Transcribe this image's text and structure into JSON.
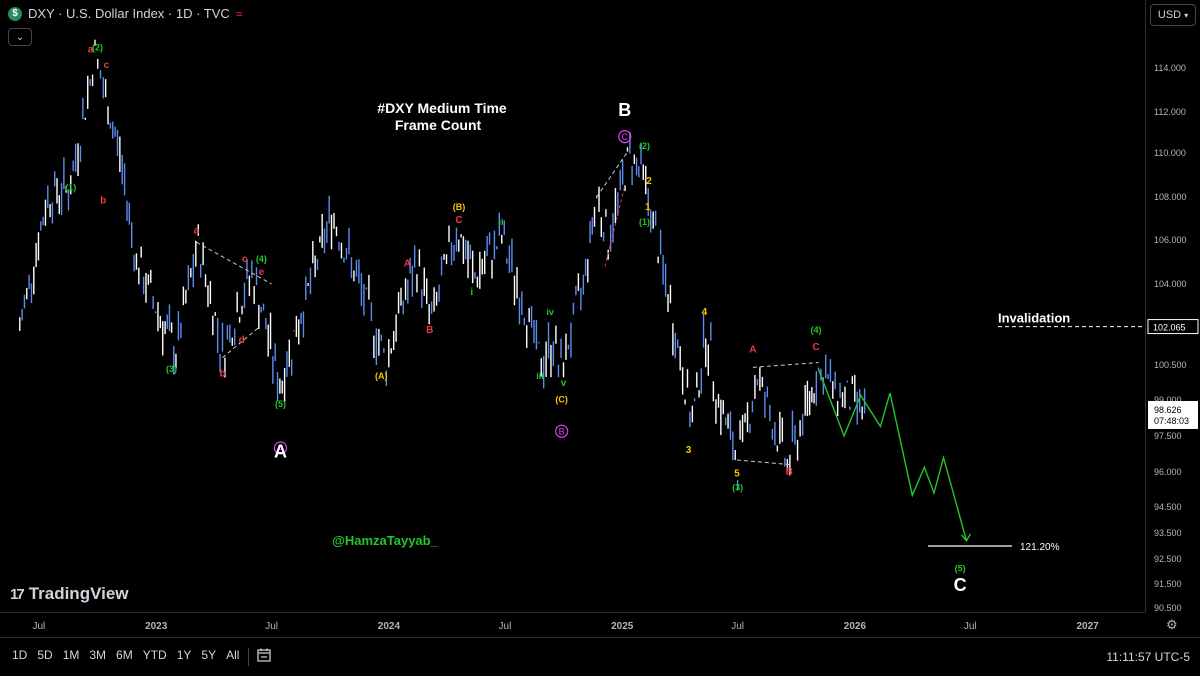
{
  "header": {
    "symbol_icon": "$",
    "title": "DXY · U.S. Dollar Index · 1D · TVC",
    "wave_icon": "≈",
    "collapse_icon": "chevron-down-icon",
    "currency": "USD"
  },
  "colors": {
    "background": "#000000",
    "candle": "#5b8def",
    "candle_alt": "#ffffff",
    "green": "#22c52e",
    "red": "#f23645",
    "yellow": "#f7c600",
    "magenta": "#e040fb",
    "white": "#ffffff"
  },
  "annotations": {
    "title_line1": "#DXY Medium Time",
    "title_line2": "Frame Count",
    "handle": "@HamzaTayyab_",
    "invalidation": "Invalidation",
    "target_pct": "121.20%",
    "big_A": "A",
    "big_B": "B",
    "big_C": "C"
  },
  "chart_data": {
    "type": "line",
    "title": "DXY · U.S. Dollar Index · 1D · TVC",
    "ylim": [
      90.5,
      116.0
    ],
    "y_ticks": [
      "114.000",
      "112.000",
      "110.000",
      "108.000",
      "106.000",
      "104.000",
      "102.000",
      "100.500",
      "99.000",
      "97.500",
      "96.000",
      "94.500",
      "93.500",
      "92.500",
      "91.500",
      "90.500"
    ],
    "x_ticks": [
      "Jul",
      "2023",
      "Jul",
      "2024",
      "Jul",
      "2025",
      "Jul",
      "2026",
      "Jul",
      "2027"
    ],
    "last_price": "98.626",
    "countdown": "07:48:03",
    "invalidation_price": "102.065",
    "series": [
      {
        "values": [
          {
            "date": "2022-06-01",
            "close": 102.0
          },
          {
            "date": "2022-07-15",
            "close": 108.0
          },
          {
            "date": "2022-08-20",
            "close": 108.5
          },
          {
            "date": "2022-09-27",
            "close": 114.7
          },
          {
            "date": "2022-10-10",
            "close": 113.0
          },
          {
            "date": "2022-11-05",
            "close": 110.0
          },
          {
            "date": "2022-12-01",
            "close": 105.0
          },
          {
            "date": "2023-01-15",
            "close": 102.0
          },
          {
            "date": "2023-02-01",
            "close": 101.0
          },
          {
            "date": "2023-03-08",
            "close": 105.8
          },
          {
            "date": "2023-04-15",
            "close": 101.0
          },
          {
            "date": "2023-05-31",
            "close": 104.5
          },
          {
            "date": "2023-07-14",
            "close": 99.6
          },
          {
            "date": "2023-08-20",
            "close": 103.0
          },
          {
            "date": "2023-10-03",
            "close": 107.2
          },
          {
            "date": "2023-11-15",
            "close": 104.0
          },
          {
            "date": "2023-12-28",
            "close": 100.6
          },
          {
            "date": "2024-01-20",
            "close": 103.0
          },
          {
            "date": "2024-02-14",
            "close": 104.9
          },
          {
            "date": "2024-03-08",
            "close": 102.4
          },
          {
            "date": "2024-04-16",
            "close": 106.5
          },
          {
            "date": "2024-05-15",
            "close": 104.3
          },
          {
            "date": "2024-06-26",
            "close": 106.1
          },
          {
            "date": "2024-07-20",
            "close": 104.0
          },
          {
            "date": "2024-08-27",
            "close": 100.5
          },
          {
            "date": "2024-09-15",
            "close": 101.5
          },
          {
            "date": "2024-09-27",
            "close": 100.2
          },
          {
            "date": "2024-11-01",
            "close": 104.0
          },
          {
            "date": "2024-11-22",
            "close": 108.1
          },
          {
            "date": "2024-12-10",
            "close": 106.0
          },
          {
            "date": "2025-01-13",
            "close": 110.0
          },
          {
            "date": "2025-02-03",
            "close": 109.0
          },
          {
            "date": "2025-03-10",
            "close": 104.0
          },
          {
            "date": "2025-04-21",
            "close": 98.0
          },
          {
            "date": "2025-05-12",
            "close": 101.9
          },
          {
            "date": "2025-06-01",
            "close": 99.0
          },
          {
            "date": "2025-07-01",
            "close": 96.4
          },
          {
            "date": "2025-08-01",
            "close": 100.0
          },
          {
            "date": "2025-09-17",
            "close": 96.3
          },
          {
            "date": "2025-10-15",
            "close": 98.5
          },
          {
            "date": "2025-11-05",
            "close": 100.3
          },
          {
            "date": "2025-12-01",
            "close": 99.4
          },
          {
            "date": "2026-01-20",
            "close": 98.6
          }
        ]
      },
      {
        "values": [
          {
            "date": "2025-11-05",
            "close": 100.3
          },
          {
            "date": "2025-12-15",
            "close": 97.5
          },
          {
            "date": "2026-01-10",
            "close": 99.2
          },
          {
            "date": "2026-02-10",
            "close": 97.9
          },
          {
            "date": "2026-02-25",
            "close": 99.3
          },
          {
            "date": "2026-04-01",
            "close": 95.0
          },
          {
            "date": "2026-04-20",
            "close": 96.2
          },
          {
            "date": "2026-05-05",
            "close": 95.1
          },
          {
            "date": "2026-05-20",
            "close": 96.6
          },
          {
            "date": "2026-06-25",
            "close": 93.2
          }
        ]
      }
    ],
    "labels": [
      {
        "text": "(1)",
        "date": "2022-08-20",
        "price": 108.3,
        "color": "green"
      },
      {
        "text": "a",
        "date": "2022-09-20",
        "price": 114.7,
        "color": "red"
      },
      {
        "text": "(2)",
        "date": "2022-10-01",
        "price": 114.8,
        "color": "green"
      },
      {
        "text": "c",
        "date": "2022-10-15",
        "price": 114.0,
        "color": "red"
      },
      {
        "text": "b",
        "date": "2022-10-10",
        "price": 107.7,
        "color": "red"
      },
      {
        "text": "a",
        "date": "2023-03-05",
        "price": 106.3,
        "color": "red"
      },
      {
        "text": "b",
        "date": "2023-04-15",
        "price": 100.0,
        "color": "red"
      },
      {
        "text": "c",
        "date": "2023-05-20",
        "price": 105.0,
        "color": "red"
      },
      {
        "text": "(4)",
        "date": "2023-06-15",
        "price": 105.0,
        "color": "green"
      },
      {
        "text": "e",
        "date": "2023-06-15",
        "price": 104.4,
        "color": "red"
      },
      {
        "text": "d",
        "date": "2023-05-15",
        "price": 101.4,
        "color": "red"
      },
      {
        "text": "(3)",
        "date": "2023-01-25",
        "price": 100.2,
        "color": "green"
      },
      {
        "text": "(5)",
        "date": "2023-07-15",
        "price": 98.7,
        "color": "green"
      },
      {
        "text": "A",
        "date": "2023-07-15",
        "price": 97.0,
        "color": "circle-magenta"
      },
      {
        "text": "(A)",
        "date": "2023-12-20",
        "price": 99.9,
        "color": "yellow"
      },
      {
        "text": "A",
        "date": "2024-01-30",
        "price": 104.8,
        "color": "red"
      },
      {
        "text": "B",
        "date": "2024-03-05",
        "price": 101.8,
        "color": "red"
      },
      {
        "text": "(B)",
        "date": "2024-04-20",
        "price": 107.4,
        "color": "yellow"
      },
      {
        "text": "C",
        "date": "2024-04-20",
        "price": 106.8,
        "color": "red"
      },
      {
        "text": "ii",
        "date": "2024-06-25",
        "price": 106.7,
        "color": "green"
      },
      {
        "text": "i",
        "date": "2024-05-10",
        "price": 103.5,
        "color": "green"
      },
      {
        "text": "iv",
        "date": "2024-09-10",
        "price": 102.6,
        "color": "green"
      },
      {
        "text": "iii",
        "date": "2024-08-25",
        "price": 99.9,
        "color": "green"
      },
      {
        "text": "v",
        "date": "2024-10-01",
        "price": 99.6,
        "color": "green"
      },
      {
        "text": "(C)",
        "date": "2024-09-28",
        "price": 98.9,
        "color": "yellow"
      },
      {
        "text": "B",
        "date": "2024-09-28",
        "price": 97.7,
        "color": "circle-magenta"
      },
      {
        "text": "C",
        "date": "2025-01-05",
        "price": 110.8,
        "color": "circle-magenta"
      },
      {
        "text": "(2)",
        "date": "2025-02-05",
        "price": 110.2,
        "color": "green"
      },
      {
        "text": "2",
        "date": "2025-02-12",
        "price": 108.6,
        "color": "yellow"
      },
      {
        "text": "1",
        "date": "2025-02-10",
        "price": 107.4,
        "color": "yellow"
      },
      {
        "text": "(1)",
        "date": "2025-02-05",
        "price": 106.7,
        "color": "green"
      },
      {
        "text": "4",
        "date": "2025-05-10",
        "price": 102.6,
        "color": "yellow"
      },
      {
        "text": "3",
        "date": "2025-04-15",
        "price": 96.8,
        "color": "yellow"
      },
      {
        "text": "5",
        "date": "2025-06-30",
        "price": 95.8,
        "color": "yellow"
      },
      {
        "text": "(3)",
        "date": "2025-07-01",
        "price": 95.2,
        "color": "green"
      },
      {
        "text": "A",
        "date": "2025-07-25",
        "price": 101.0,
        "color": "red"
      },
      {
        "text": "B",
        "date": "2025-09-20",
        "price": 95.9,
        "color": "red"
      },
      {
        "text": "C",
        "date": "2025-11-01",
        "price": 101.1,
        "color": "red"
      },
      {
        "text": "(4)",
        "date": "2025-11-01",
        "price": 101.8,
        "color": "green"
      },
      {
        "text": "(5)",
        "date": "2026-06-15",
        "price": 92.0,
        "color": "green"
      }
    ]
  },
  "time_axis": {
    "settings_icon": "gear-icon"
  },
  "footer": {
    "logo_text": "TradingView",
    "ranges": [
      "1D",
      "5D",
      "1M",
      "3M",
      "6M",
      "YTD",
      "1Y",
      "5Y",
      "All"
    ],
    "compare_icon": "calendar-range-icon",
    "clock": "11:11:57 UTC-5"
  }
}
